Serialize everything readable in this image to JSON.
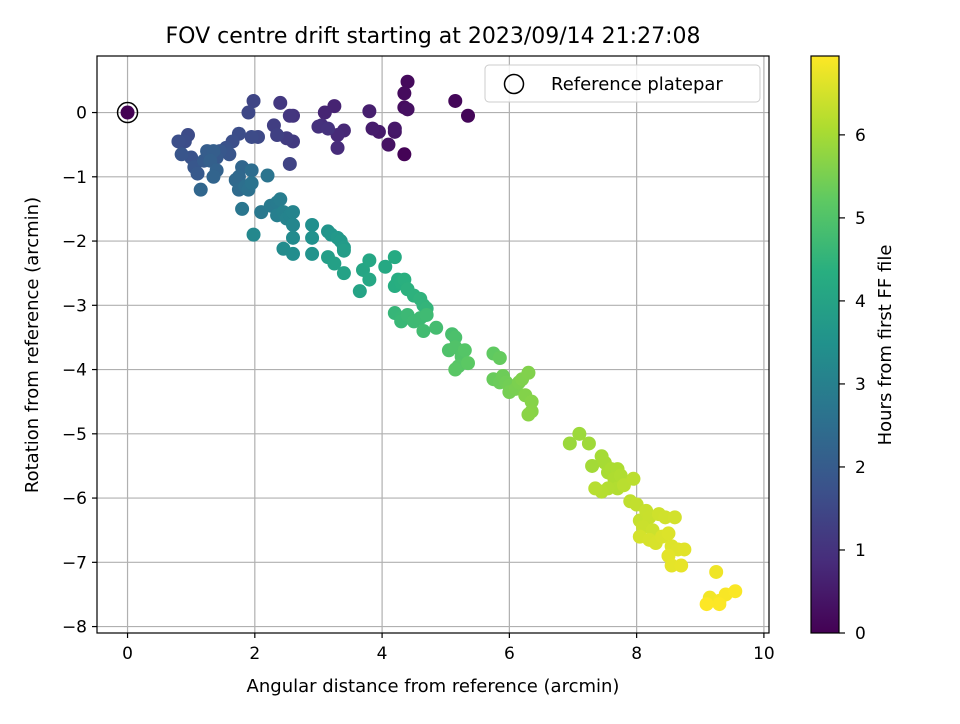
{
  "chart_data": {
    "type": "scatter",
    "title": "FOV centre drift starting at 2023/09/14 21:27:08",
    "xlabel": "Angular distance from reference (arcmin)",
    "ylabel": "Rotation from reference (arcmin)",
    "xlim": [
      -0.48,
      10.08
    ],
    "ylim": [
      -8.1,
      0.88
    ],
    "xticks": [
      0,
      2,
      4,
      6,
      8,
      10
    ],
    "yticks": [
      0,
      -1,
      -2,
      -3,
      -4,
      -5,
      -6,
      -7,
      -8
    ],
    "grid": true,
    "legend": {
      "placement": "top-right",
      "entries": [
        "Reference platepar"
      ]
    },
    "colorbar": {
      "label": "Hours from first FF file",
      "min": 0,
      "max": 6.95,
      "ticks": [
        0,
        1,
        2,
        3,
        4,
        5,
        6
      ],
      "colormap": "viridis"
    },
    "reference": {
      "x": 0,
      "y": 0,
      "t": 0.0
    },
    "points": [
      {
        "x": 4.35,
        "y": -0.65,
        "t": 0.05
      },
      {
        "x": 5.35,
        "y": -0.05,
        "t": 0.1
      },
      {
        "x": 5.15,
        "y": 0.18,
        "t": 0.12
      },
      {
        "x": 4.4,
        "y": 0.48,
        "t": 0.18
      },
      {
        "x": 4.35,
        "y": 0.3,
        "t": 0.2
      },
      {
        "x": 4.35,
        "y": 0.08,
        "t": 0.25
      },
      {
        "x": 4.4,
        "y": 0.05,
        "t": 0.3
      },
      {
        "x": 4.1,
        "y": -0.5,
        "t": 0.35
      },
      {
        "x": 4.2,
        "y": -0.3,
        "t": 0.4
      },
      {
        "x": 4.2,
        "y": -0.25,
        "t": 0.45
      },
      {
        "x": 3.95,
        "y": -0.3,
        "t": 0.5
      },
      {
        "x": 3.85,
        "y": -0.25,
        "t": 0.55
      },
      {
        "x": 3.8,
        "y": 0.02,
        "t": 0.6
      },
      {
        "x": 3.25,
        "y": 0.1,
        "t": 0.68
      },
      {
        "x": 3.1,
        "y": 0.0,
        "t": 0.72
      },
      {
        "x": 3.4,
        "y": -0.28,
        "t": 0.78
      },
      {
        "x": 3.3,
        "y": -0.35,
        "t": 0.82
      },
      {
        "x": 3.3,
        "y": -0.55,
        "t": 0.88
      },
      {
        "x": 3.05,
        "y": -0.2,
        "t": 0.92
      },
      {
        "x": 3.0,
        "y": -0.22,
        "t": 0.98
      },
      {
        "x": 3.15,
        "y": -0.25,
        "t": 1.0
      },
      {
        "x": 2.6,
        "y": -0.05,
        "t": 1.05
      },
      {
        "x": 2.55,
        "y": -0.05,
        "t": 1.1
      },
      {
        "x": 2.4,
        "y": 0.15,
        "t": 1.15
      },
      {
        "x": 2.6,
        "y": -0.45,
        "t": 1.2
      },
      {
        "x": 2.5,
        "y": -0.4,
        "t": 1.25
      },
      {
        "x": 2.3,
        "y": -0.2,
        "t": 1.3
      },
      {
        "x": 2.35,
        "y": -0.35,
        "t": 1.35
      },
      {
        "x": 2.55,
        "y": -0.8,
        "t": 1.4
      },
      {
        "x": 1.98,
        "y": 0.18,
        "t": 1.45
      },
      {
        "x": 1.9,
        "y": 0.0,
        "t": 1.5
      },
      {
        "x": 2.05,
        "y": -0.38,
        "t": 1.55
      },
      {
        "x": 1.95,
        "y": -0.38,
        "t": 1.6
      },
      {
        "x": 1.75,
        "y": -0.33,
        "t": 1.65
      },
      {
        "x": 1.65,
        "y": -0.45,
        "t": 1.7
      },
      {
        "x": 1.55,
        "y": -0.55,
        "t": 1.75
      },
      {
        "x": 1.55,
        "y": -0.6,
        "t": 1.8
      },
      {
        "x": 1.6,
        "y": -0.65,
        "t": 1.85
      },
      {
        "x": 1.45,
        "y": -0.6,
        "t": 1.9
      },
      {
        "x": 1.4,
        "y": -0.7,
        "t": 1.95
      },
      {
        "x": 0.95,
        "y": -0.35,
        "t": 1.6
      },
      {
        "x": 0.9,
        "y": -0.45,
        "t": 1.65
      },
      {
        "x": 0.8,
        "y": -0.45,
        "t": 1.7
      },
      {
        "x": 1.0,
        "y": -0.7,
        "t": 1.8
      },
      {
        "x": 0.85,
        "y": -0.65,
        "t": 1.85
      },
      {
        "x": 1.05,
        "y": -0.85,
        "t": 1.9
      },
      {
        "x": 1.1,
        "y": -0.95,
        "t": 1.95
      },
      {
        "x": 1.2,
        "y": -0.75,
        "t": 2.0
      },
      {
        "x": 1.25,
        "y": -0.6,
        "t": 2.05
      },
      {
        "x": 1.35,
        "y": -0.6,
        "t": 2.1
      },
      {
        "x": 1.3,
        "y": -0.75,
        "t": 2.15
      },
      {
        "x": 1.4,
        "y": -0.9,
        "t": 2.2
      },
      {
        "x": 1.35,
        "y": -1.0,
        "t": 2.25
      },
      {
        "x": 1.15,
        "y": -1.2,
        "t": 2.3
      },
      {
        "x": 1.8,
        "y": -0.85,
        "t": 2.3
      },
      {
        "x": 1.75,
        "y": -1.0,
        "t": 2.35
      },
      {
        "x": 1.7,
        "y": -1.05,
        "t": 2.4
      },
      {
        "x": 1.75,
        "y": -1.2,
        "t": 2.45
      },
      {
        "x": 1.95,
        "y": -0.9,
        "t": 2.5
      },
      {
        "x": 1.85,
        "y": -1.15,
        "t": 2.55
      },
      {
        "x": 1.9,
        "y": -1.2,
        "t": 2.6
      },
      {
        "x": 1.95,
        "y": -1.1,
        "t": 2.65
      },
      {
        "x": 2.2,
        "y": -0.98,
        "t": 2.7
      },
      {
        "x": 1.8,
        "y": -1.5,
        "t": 2.75
      },
      {
        "x": 2.1,
        "y": -1.55,
        "t": 2.8
      },
      {
        "x": 2.25,
        "y": -1.45,
        "t": 2.85
      },
      {
        "x": 2.35,
        "y": -1.4,
        "t": 2.9
      },
      {
        "x": 2.4,
        "y": -1.35,
        "t": 2.95
      },
      {
        "x": 2.35,
        "y": -1.6,
        "t": 3.0
      },
      {
        "x": 2.45,
        "y": -1.55,
        "t": 3.05
      },
      {
        "x": 2.5,
        "y": -1.65,
        "t": 3.1
      },
      {
        "x": 2.55,
        "y": -1.6,
        "t": 3.12
      },
      {
        "x": 2.6,
        "y": -1.55,
        "t": 3.15
      },
      {
        "x": 2.6,
        "y": -1.75,
        "t": 3.2
      },
      {
        "x": 1.98,
        "y": -1.9,
        "t": 3.25
      },
      {
        "x": 2.6,
        "y": -1.95,
        "t": 3.3
      },
      {
        "x": 2.45,
        "y": -2.12,
        "t": 3.35
      },
      {
        "x": 2.6,
        "y": -2.2,
        "t": 3.4
      },
      {
        "x": 2.9,
        "y": -1.75,
        "t": 3.45
      },
      {
        "x": 2.9,
        "y": -1.95,
        "t": 3.5
      },
      {
        "x": 2.9,
        "y": -2.2,
        "t": 3.55
      },
      {
        "x": 3.15,
        "y": -1.85,
        "t": 3.6
      },
      {
        "x": 3.2,
        "y": -1.9,
        "t": 3.65
      },
      {
        "x": 3.3,
        "y": -1.95,
        "t": 3.7
      },
      {
        "x": 3.35,
        "y": -2.0,
        "t": 3.75
      },
      {
        "x": 3.4,
        "y": -2.1,
        "t": 3.8
      },
      {
        "x": 3.4,
        "y": -2.15,
        "t": 3.85
      },
      {
        "x": 3.15,
        "y": -2.25,
        "t": 3.9
      },
      {
        "x": 3.25,
        "y": -2.35,
        "t": 3.95
      },
      {
        "x": 3.4,
        "y": -2.5,
        "t": 4.0
      },
      {
        "x": 3.65,
        "y": -2.78,
        "t": 4.05
      },
      {
        "x": 3.7,
        "y": -2.45,
        "t": 4.1
      },
      {
        "x": 3.8,
        "y": -2.3,
        "t": 4.12
      },
      {
        "x": 3.8,
        "y": -2.6,
        "t": 4.15
      },
      {
        "x": 4.05,
        "y": -2.4,
        "t": 4.2
      },
      {
        "x": 4.2,
        "y": -2.25,
        "t": 4.25
      },
      {
        "x": 4.25,
        "y": -2.6,
        "t": 4.3
      },
      {
        "x": 4.2,
        "y": -2.7,
        "t": 4.33
      },
      {
        "x": 4.3,
        "y": -2.65,
        "t": 4.36
      },
      {
        "x": 4.35,
        "y": -2.6,
        "t": 4.4
      },
      {
        "x": 4.4,
        "y": -2.75,
        "t": 4.43
      },
      {
        "x": 4.5,
        "y": -2.85,
        "t": 4.46
      },
      {
        "x": 4.6,
        "y": -2.9,
        "t": 4.5
      },
      {
        "x": 4.65,
        "y": -3.0,
        "t": 4.53
      },
      {
        "x": 4.7,
        "y": -3.05,
        "t": 4.56
      },
      {
        "x": 4.2,
        "y": -3.12,
        "t": 4.6
      },
      {
        "x": 4.3,
        "y": -3.2,
        "t": 4.63
      },
      {
        "x": 4.3,
        "y": -3.25,
        "t": 4.66
      },
      {
        "x": 4.4,
        "y": -3.15,
        "t": 4.7
      },
      {
        "x": 4.5,
        "y": -3.25,
        "t": 4.72
      },
      {
        "x": 4.6,
        "y": -3.2,
        "t": 4.74
      },
      {
        "x": 4.7,
        "y": -3.15,
        "t": 4.76
      },
      {
        "x": 4.65,
        "y": -3.4,
        "t": 4.8
      },
      {
        "x": 4.85,
        "y": -3.35,
        "t": 4.84
      },
      {
        "x": 5.1,
        "y": -3.45,
        "t": 4.9
      },
      {
        "x": 5.15,
        "y": -3.5,
        "t": 4.95
      },
      {
        "x": 5.05,
        "y": -3.7,
        "t": 5.0
      },
      {
        "x": 5.15,
        "y": -3.65,
        "t": 5.03
      },
      {
        "x": 5.25,
        "y": -3.8,
        "t": 5.06
      },
      {
        "x": 5.3,
        "y": -3.7,
        "t": 5.1
      },
      {
        "x": 5.2,
        "y": -3.95,
        "t": 5.13
      },
      {
        "x": 5.15,
        "y": -4.0,
        "t": 5.16
      },
      {
        "x": 5.35,
        "y": -3.9,
        "t": 5.2
      },
      {
        "x": 5.75,
        "y": -3.75,
        "t": 5.25
      },
      {
        "x": 5.85,
        "y": -3.82,
        "t": 5.3
      },
      {
        "x": 5.75,
        "y": -4.15,
        "t": 5.35
      },
      {
        "x": 5.85,
        "y": -4.2,
        "t": 5.38
      },
      {
        "x": 5.9,
        "y": -4.1,
        "t": 5.4
      },
      {
        "x": 5.95,
        "y": -4.2,
        "t": 5.43
      },
      {
        "x": 6.0,
        "y": -4.25,
        "t": 5.46
      },
      {
        "x": 6.0,
        "y": -4.35,
        "t": 5.5
      },
      {
        "x": 6.1,
        "y": -4.3,
        "t": 5.53
      },
      {
        "x": 6.15,
        "y": -4.2,
        "t": 5.56
      },
      {
        "x": 6.2,
        "y": -4.15,
        "t": 5.6
      },
      {
        "x": 6.3,
        "y": -4.05,
        "t": 5.62
      },
      {
        "x": 6.25,
        "y": -4.4,
        "t": 5.65
      },
      {
        "x": 6.35,
        "y": -4.5,
        "t": 5.68
      },
      {
        "x": 6.35,
        "y": -4.65,
        "t": 5.7
      },
      {
        "x": 6.3,
        "y": -4.7,
        "t": 5.72
      },
      {
        "x": 6.95,
        "y": -5.15,
        "t": 5.9
      },
      {
        "x": 7.1,
        "y": -5.0,
        "t": 5.93
      },
      {
        "x": 7.25,
        "y": -5.15,
        "t": 5.96
      },
      {
        "x": 7.3,
        "y": -5.5,
        "t": 6.0
      },
      {
        "x": 7.45,
        "y": -5.35,
        "t": 6.02
      },
      {
        "x": 7.5,
        "y": -5.45,
        "t": 6.04
      },
      {
        "x": 7.55,
        "y": -5.6,
        "t": 6.06
      },
      {
        "x": 7.6,
        "y": -5.55,
        "t": 6.08
      },
      {
        "x": 7.7,
        "y": -5.55,
        "t": 6.1
      },
      {
        "x": 7.65,
        "y": -5.7,
        "t": 6.12
      },
      {
        "x": 7.75,
        "y": -5.65,
        "t": 6.14
      },
      {
        "x": 7.7,
        "y": -5.85,
        "t": 6.16
      },
      {
        "x": 7.55,
        "y": -5.85,
        "t": 6.18
      },
      {
        "x": 7.45,
        "y": -5.9,
        "t": 6.2
      },
      {
        "x": 7.35,
        "y": -5.85,
        "t": 6.22
      },
      {
        "x": 7.8,
        "y": -5.8,
        "t": 6.24
      },
      {
        "x": 7.95,
        "y": -5.7,
        "t": 6.26
      },
      {
        "x": 7.9,
        "y": -6.05,
        "t": 6.3
      },
      {
        "x": 8.0,
        "y": -6.1,
        "t": 6.33
      },
      {
        "x": 8.05,
        "y": -6.35,
        "t": 6.36
      },
      {
        "x": 8.15,
        "y": -6.2,
        "t": 6.38
      },
      {
        "x": 8.2,
        "y": -6.3,
        "t": 6.4
      },
      {
        "x": 8.1,
        "y": -6.45,
        "t": 6.42
      },
      {
        "x": 8.25,
        "y": -6.5,
        "t": 6.44
      },
      {
        "x": 8.35,
        "y": -6.25,
        "t": 6.46
      },
      {
        "x": 8.45,
        "y": -6.3,
        "t": 6.48
      },
      {
        "x": 8.6,
        "y": -6.3,
        "t": 6.5
      },
      {
        "x": 8.05,
        "y": -6.6,
        "t": 6.52
      },
      {
        "x": 8.2,
        "y": -6.65,
        "t": 6.54
      },
      {
        "x": 8.3,
        "y": -6.7,
        "t": 6.56
      },
      {
        "x": 8.4,
        "y": -6.6,
        "t": 6.58
      },
      {
        "x": 8.5,
        "y": -6.55,
        "t": 6.6
      },
      {
        "x": 8.55,
        "y": -6.75,
        "t": 6.62
      },
      {
        "x": 8.65,
        "y": -6.8,
        "t": 6.64
      },
      {
        "x": 8.75,
        "y": -6.8,
        "t": 6.66
      },
      {
        "x": 8.5,
        "y": -6.9,
        "t": 6.68
      },
      {
        "x": 8.55,
        "y": -7.05,
        "t": 6.7
      },
      {
        "x": 8.7,
        "y": -7.05,
        "t": 6.72
      },
      {
        "x": 9.25,
        "y": -7.15,
        "t": 6.8
      },
      {
        "x": 9.15,
        "y": -7.55,
        "t": 6.84
      },
      {
        "x": 9.3,
        "y": -7.6,
        "t": 6.87
      },
      {
        "x": 9.4,
        "y": -7.5,
        "t": 6.9
      },
      {
        "x": 9.55,
        "y": -7.45,
        "t": 6.92
      },
      {
        "x": 9.3,
        "y": -7.65,
        "t": 6.94
      },
      {
        "x": 9.1,
        "y": -7.65,
        "t": 6.95
      }
    ]
  }
}
